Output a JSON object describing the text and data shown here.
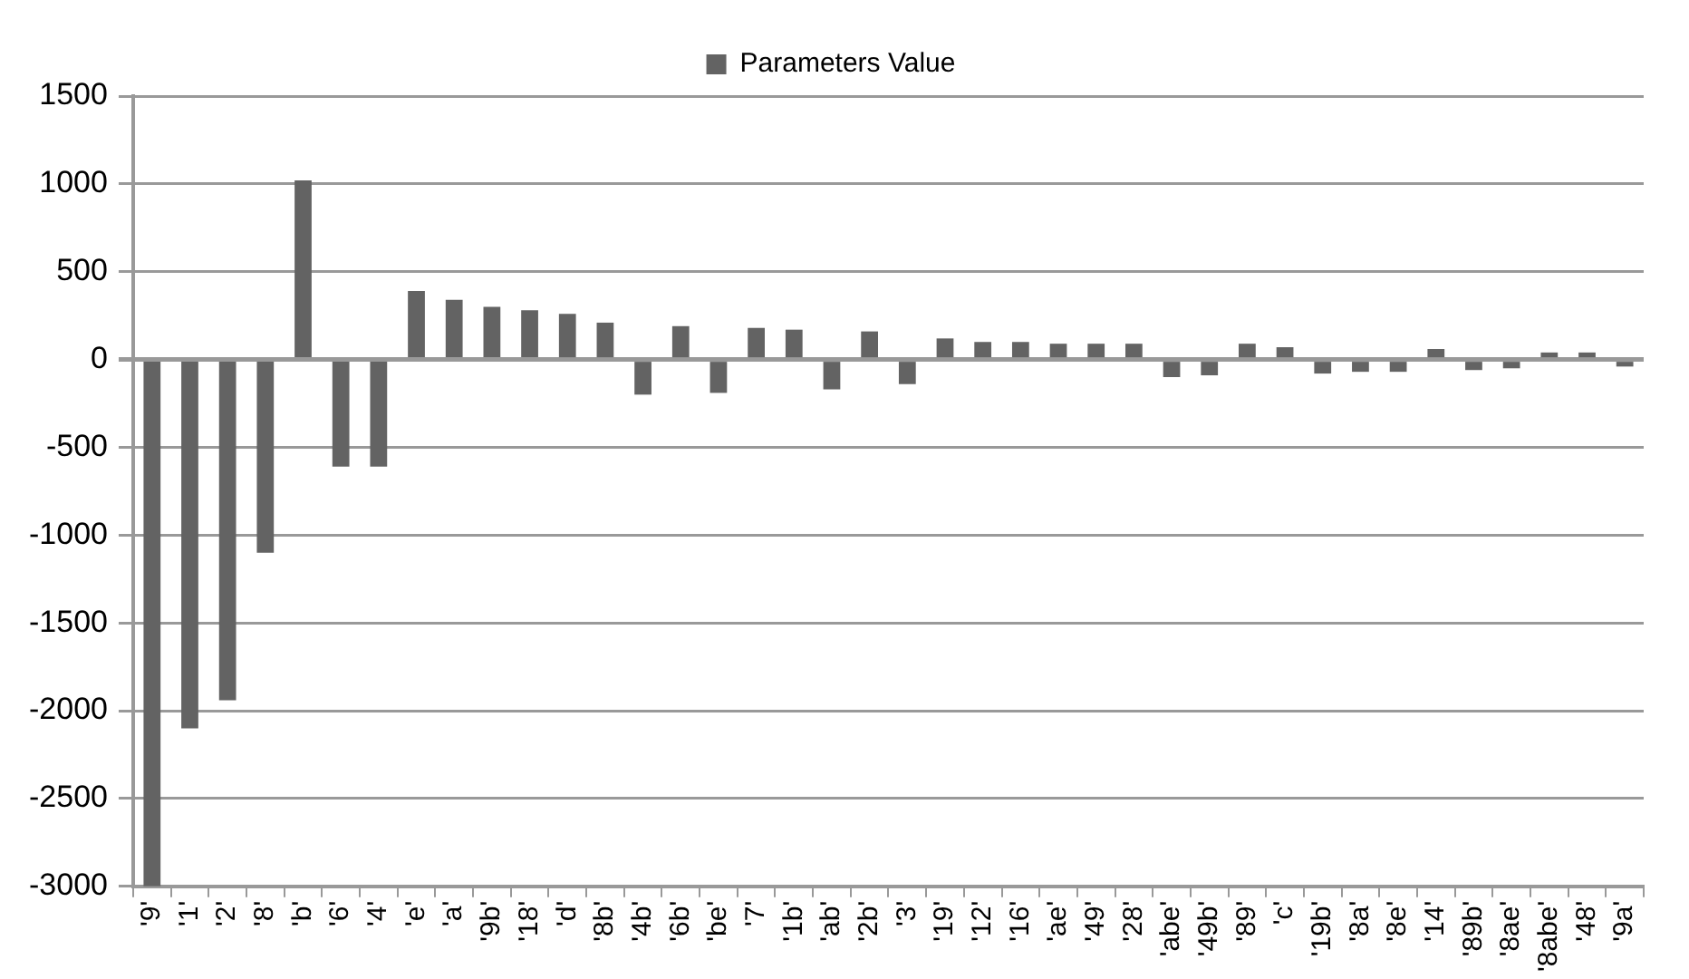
{
  "chart_data": {
    "type": "bar",
    "categories": [
      "'9'",
      "'1'",
      "'2'",
      "'8'",
      "'b'",
      "'6'",
      "'4'",
      "'e'",
      "'a'",
      "'9b'",
      "'18'",
      "'d'",
      "'8b'",
      "'4b'",
      "'6b'",
      "'be'",
      "'7'",
      "'1b'",
      "'ab'",
      "'2b'",
      "'3'",
      "'19'",
      "'12'",
      "'16'",
      "'ae'",
      "'49'",
      "'28'",
      "'abe'",
      "'49b'",
      "'89'",
      "'c'",
      "'19b'",
      "'8a'",
      "'8e'",
      "'14'",
      "'89b'",
      "'8ae'",
      "'8abe'",
      "'48'",
      "'9a'"
    ],
    "series": [
      {
        "name": "Parameters Value",
        "color": "#636363",
        "values": [
          -3000,
          -2100,
          -1940,
          -1100,
          1020,
          -610,
          -610,
          390,
          340,
          300,
          280,
          260,
          210,
          -200,
          190,
          -190,
          180,
          170,
          -170,
          160,
          -140,
          120,
          100,
          100,
          90,
          90,
          90,
          -100,
          -90,
          90,
          70,
          -80,
          -70,
          -70,
          60,
          -60,
          -50,
          40,
          40,
          -40
        ]
      }
    ],
    "ylim": [
      -3000,
      1500
    ],
    "yticks": [
      -3000,
      -2500,
      -2000,
      -1500,
      -1000,
      -500,
      0,
      500,
      1000,
      1500
    ],
    "grid": "y",
    "legend": "top"
  }
}
